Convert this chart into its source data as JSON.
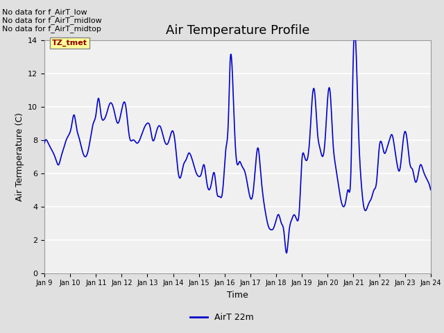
{
  "title": "Air Temperature Profile",
  "xlabel": "Time",
  "ylabel": "Air Termperature (C)",
  "line_color": "#0000CC",
  "line_width": 1.2,
  "ylim": [
    0,
    14
  ],
  "yticks": [
    0,
    2,
    4,
    6,
    8,
    10,
    12,
    14
  ],
  "fig_bg_color": "#E0E0E0",
  "plot_bg_color": "#F0F0F0",
  "legend_label": "AirT 22m",
  "annotations_text": [
    "No data for f_AirT_low",
    "No data for f_AirT_midlow",
    "No data for f_AirT_midtop"
  ],
  "tz_label": "TZ_tmet",
  "x_tick_labels": [
    "Jan 9",
    "Jan 10",
    "Jan 11",
    "Jan 12",
    "Jan 13",
    "Jan 14",
    "Jan 15",
    "Jan 16",
    "Jan 17",
    "Jan 18",
    "Jan 19",
    "Jan 20",
    "Jan 21",
    "Jan 22",
    "Jan 23",
    "Jan 24"
  ],
  "title_fontsize": 13,
  "axis_fontsize": 9,
  "tick_fontsize": 8,
  "annot_fontsize": 8
}
